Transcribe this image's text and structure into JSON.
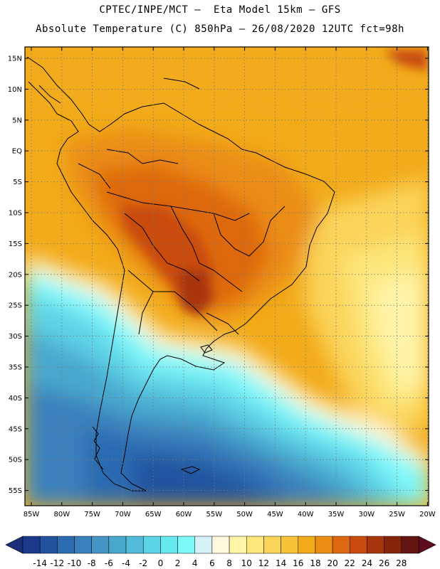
{
  "title": {
    "line1": "CPTEC/INPE/MCT –  Eta Model 15km – GFS",
    "line2": "Absolute Temperature (C) 850hPa – 26/08/2020 12UTC fct=98h"
  },
  "lat_labels": [
    "15N",
    "10N",
    "5N",
    "EQ",
    "5S",
    "10S",
    "15S",
    "20S",
    "25S",
    "30S",
    "35S",
    "40S",
    "45S",
    "50S",
    "55S"
  ],
  "lon_labels": [
    "85W",
    "80W",
    "75W",
    "70W",
    "65W",
    "60W",
    "55W",
    "50W",
    "45W",
    "40W",
    "35W",
    "30W",
    "25W",
    "20W"
  ],
  "colorbar": {
    "labels": [
      "-14",
      "-12",
      "-10",
      "-8",
      "-6",
      "-4",
      "-2",
      "0",
      "2",
      "4",
      "6",
      "8",
      "10",
      "12",
      "14",
      "16",
      "18",
      "20",
      "22",
      "24",
      "26",
      "28"
    ],
    "colors": [
      "#1b3a8c",
      "#24539e",
      "#2c6bb0",
      "#3a80bd",
      "#4494c4",
      "#4aa8cf",
      "#52bbd9",
      "#5dd3e6",
      "#66e8ef",
      "#7ff8fa",
      "#d4f2f7",
      "#fff8dd",
      "#fff4a8",
      "#fde67a",
      "#fbd45a",
      "#f7c237",
      "#f2ab1a",
      "#eb8d14",
      "#dd6811",
      "#c94b0d",
      "#a8360c",
      "#85250c",
      "#641512"
    ],
    "low_arrow": "#1b2f79",
    "high_arrow": "#5f0d1e"
  },
  "continent_heat_zones": {
    "palette_note": "850 hPa absolute temperature, warm interior",
    "levels": [
      "16-18",
      "18-20",
      "20-22",
      "22-24"
    ]
  }
}
